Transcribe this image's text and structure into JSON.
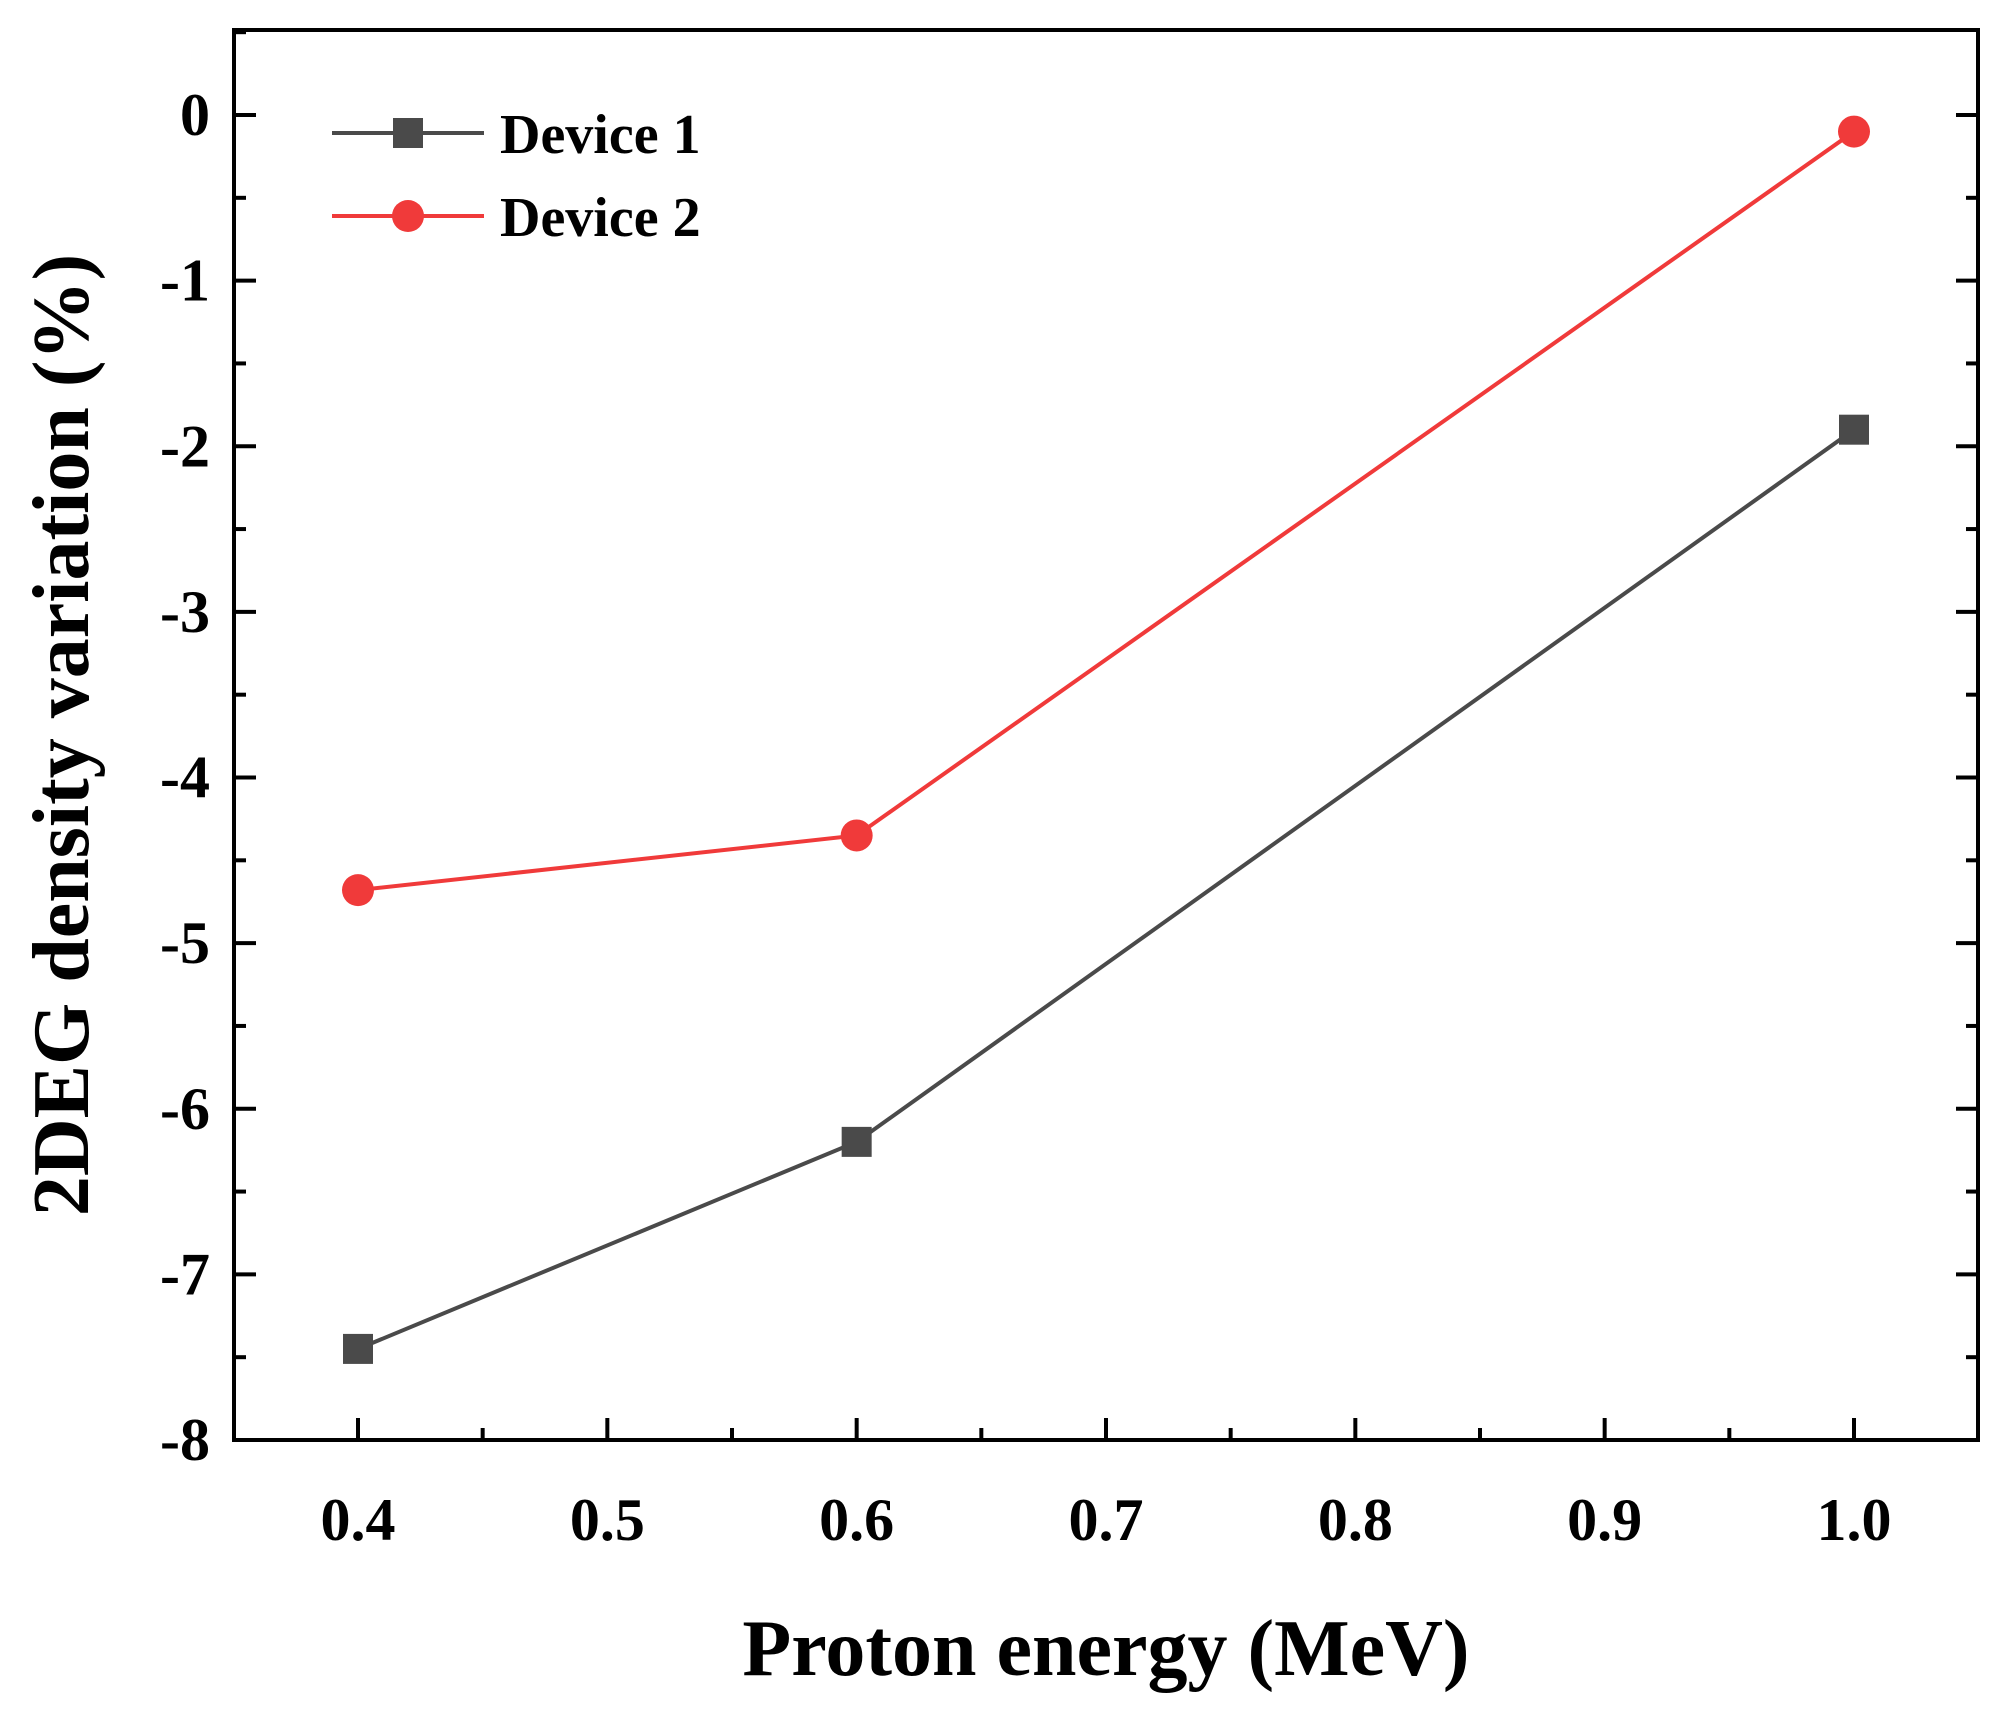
{
  "chart_data": {
    "type": "line",
    "title": "",
    "xlabel": "Proton energy (MeV)",
    "ylabel": "2DEG density variation (%)",
    "xlim": [
      0.35,
      1.05
    ],
    "ylim": [
      -8,
      0.5
    ],
    "xticks": [
      0.4,
      0.5,
      0.6,
      0.7,
      0.8,
      0.9,
      1.0
    ],
    "xtick_labels": [
      "0.4",
      "0.5",
      "0.6",
      "0.7",
      "0.8",
      "0.9",
      "1.0"
    ],
    "yticks": [
      0,
      -1,
      -2,
      -3,
      -4,
      -5,
      -6,
      -7,
      -8
    ],
    "ytick_labels": [
      "0",
      "-1",
      "-2",
      "-3",
      "-4",
      "-5",
      "-6",
      "-7",
      "-8"
    ],
    "grid": false,
    "legend_position": "top-left",
    "series": [
      {
        "name": "Device 1",
        "color": "#4a4a4a",
        "marker": "square",
        "x": [
          0.4,
          0.6,
          1.0
        ],
        "values": [
          -7.45,
          -6.2,
          -1.9
        ]
      },
      {
        "name": "Device 2",
        "color": "#f03a3a",
        "marker": "circle",
        "x": [
          0.4,
          0.6,
          1.0
        ],
        "values": [
          -4.68,
          -4.35,
          -0.1
        ]
      }
    ]
  }
}
